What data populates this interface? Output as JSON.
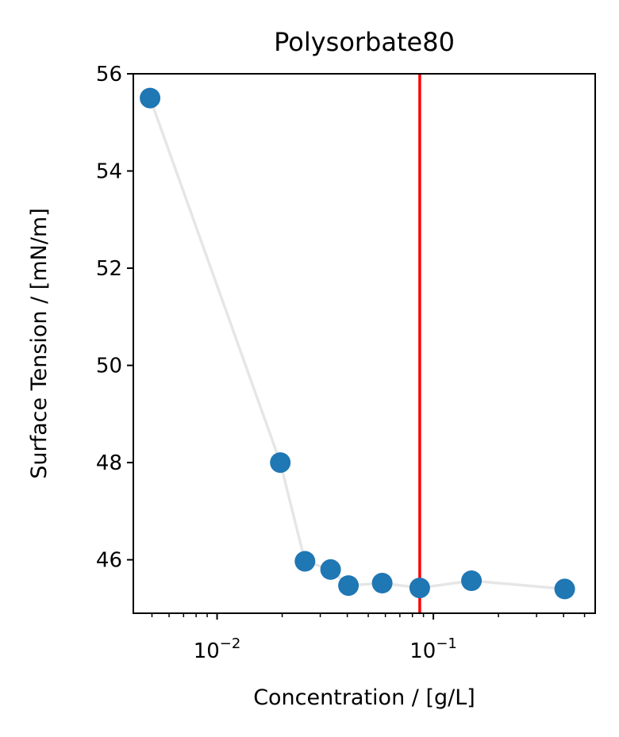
{
  "chart_data": {
    "type": "scatter",
    "title": "Polysorbate80",
    "xlabel": "Concentration / [g/L]",
    "ylabel": "Surface Tension / [mN/m]",
    "x_scale": "log",
    "xlim": [
      0.0041,
      0.56
    ],
    "ylim": [
      44.9,
      56
    ],
    "x_ticks": [
      {
        "value": 0.01,
        "base": "10",
        "exp": "−2"
      },
      {
        "value": 0.1,
        "base": "10",
        "exp": "−1"
      }
    ],
    "y_ticks": [
      {
        "value": 46,
        "label": "46"
      },
      {
        "value": 48,
        "label": "48"
      },
      {
        "value": 50,
        "label": "50"
      },
      {
        "value": 52,
        "label": "52"
      },
      {
        "value": 54,
        "label": "54"
      },
      {
        "value": 56,
        "label": "56"
      }
    ],
    "series": [
      {
        "x": [
          0.0049,
          0.0196,
          0.0255,
          0.0335,
          0.0405,
          0.058,
          0.0865,
          0.15,
          0.405
        ],
        "y": [
          55.5,
          48.0,
          45.97,
          45.8,
          45.47,
          45.52,
          45.42,
          45.57,
          45.4
        ],
        "color": "#1f77b4",
        "line_color": "#e6e6e6"
      }
    ],
    "vline": {
      "x": 0.0865,
      "color": "#ff0000"
    },
    "grid": false,
    "legend": "none"
  }
}
